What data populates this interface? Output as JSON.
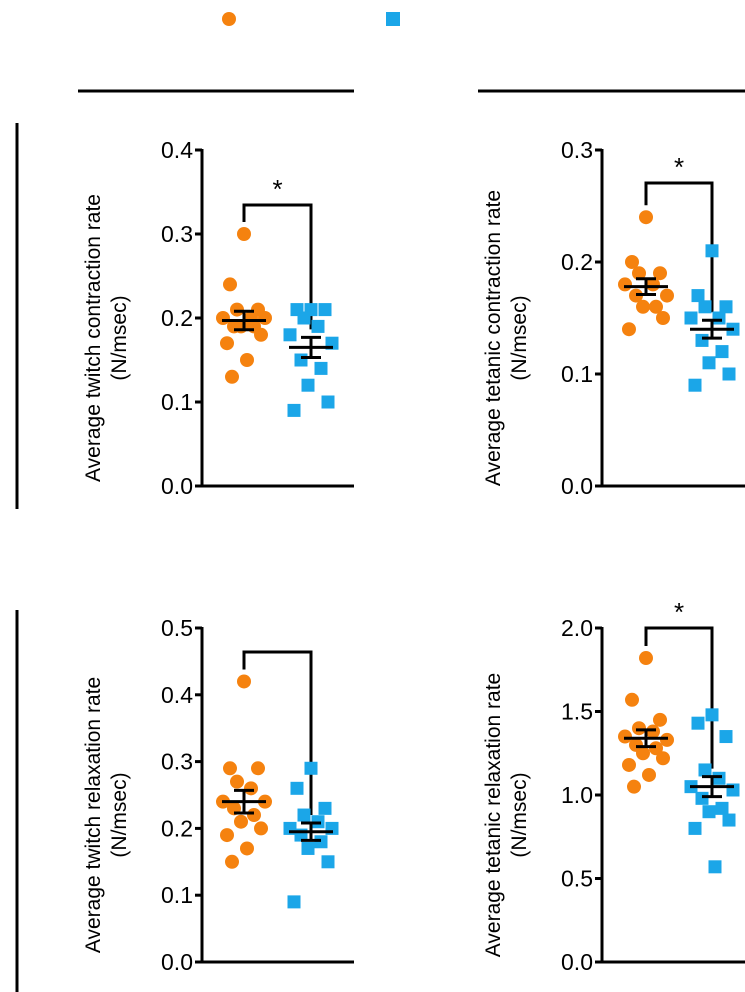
{
  "colors": {
    "group1": "#F5820F",
    "group2": "#1BA6E8",
    "line": "#000000"
  },
  "legend": [
    {
      "name": "",
      "marker": "circle",
      "color": "#F5820F"
    },
    {
      "name": "",
      "marker": "square",
      "color": "#1BA6E8"
    }
  ],
  "chart_data": [
    {
      "type": "scatter",
      "ylabel": "Average twitch contraction rate\n(N/msec)",
      "ylim": [
        0,
        0.4
      ],
      "yticks": [
        "0.0",
        "0.1",
        "0.2",
        "0.3",
        "0.4"
      ],
      "significance": "*",
      "series": [
        {
          "marker": "circle",
          "mean": 0.197,
          "sem": 0.011,
          "values": [
            0.3,
            0.24,
            0.21,
            0.21,
            0.2,
            0.2,
            0.2,
            0.19,
            0.19,
            0.19,
            0.18,
            0.17,
            0.15,
            0.13
          ]
        },
        {
          "marker": "square",
          "mean": 0.165,
          "sem": 0.012,
          "values": [
            0.21,
            0.21,
            0.21,
            0.2,
            0.19,
            0.18,
            0.17,
            0.15,
            0.14,
            0.12,
            0.1,
            0.09
          ]
        }
      ]
    },
    {
      "type": "scatter",
      "ylabel": "Average tetanic contraction rate\n(N/msec)",
      "ylim": [
        0,
        0.3
      ],
      "yticks": [
        "0.0",
        "0.1",
        "0.2",
        "0.3"
      ],
      "significance": "*",
      "series": [
        {
          "marker": "circle",
          "mean": 0.178,
          "sem": 0.007,
          "values": [
            0.24,
            0.2,
            0.19,
            0.19,
            0.18,
            0.18,
            0.17,
            0.17,
            0.16,
            0.16,
            0.15,
            0.14
          ]
        },
        {
          "marker": "square",
          "mean": 0.14,
          "sem": 0.008,
          "values": [
            0.21,
            0.17,
            0.16,
            0.16,
            0.15,
            0.15,
            0.14,
            0.13,
            0.12,
            0.11,
            0.1,
            0.09
          ]
        }
      ]
    },
    {
      "type": "scatter",
      "ylabel": "Average twitch relaxation rate\n(N/msec)",
      "ylim": [
        0,
        0.5
      ],
      "yticks": [
        "0.0",
        "0.1",
        "0.2",
        "0.3",
        "0.4",
        "0.5"
      ],
      "significance": "",
      "series": [
        {
          "marker": "circle",
          "mean": 0.24,
          "sem": 0.017,
          "values": [
            0.42,
            0.29,
            0.29,
            0.27,
            0.26,
            0.24,
            0.24,
            0.23,
            0.22,
            0.21,
            0.2,
            0.19,
            0.17,
            0.15
          ]
        },
        {
          "marker": "square",
          "mean": 0.195,
          "sem": 0.013,
          "values": [
            0.29,
            0.26,
            0.23,
            0.22,
            0.21,
            0.2,
            0.2,
            0.19,
            0.18,
            0.17,
            0.15,
            0.09
          ]
        }
      ]
    },
    {
      "type": "scatter",
      "ylabel": "Average tetanic relaxation rate\n(N/msec)",
      "ylim": [
        0,
        2.0
      ],
      "yticks": [
        "0.0",
        "0.5",
        "1.0",
        "1.5",
        "2.0"
      ],
      "significance": "*",
      "series": [
        {
          "marker": "circle",
          "mean": 1.34,
          "sem": 0.05,
          "values": [
            1.82,
            1.57,
            1.45,
            1.4,
            1.38,
            1.35,
            1.33,
            1.3,
            1.28,
            1.25,
            1.22,
            1.18,
            1.12,
            1.05
          ]
        },
        {
          "marker": "square",
          "mean": 1.05,
          "sem": 0.06,
          "values": [
            1.48,
            1.43,
            1.35,
            1.15,
            1.1,
            1.05,
            1.03,
            0.98,
            0.92,
            0.9,
            0.85,
            0.8,
            0.57
          ]
        }
      ]
    }
  ]
}
